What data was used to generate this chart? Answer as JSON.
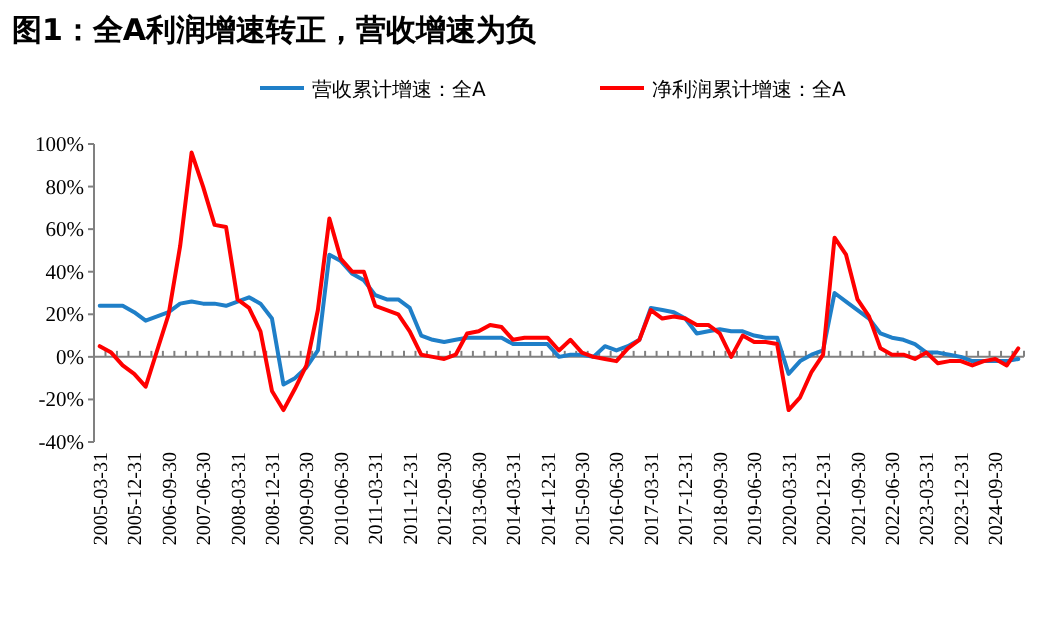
{
  "chart_data": {
    "type": "line",
    "title": "图1：全A利润增速转正，营收增速为负",
    "categories": [
      "2005-03-31",
      null,
      null,
      "2005-12-31",
      null,
      null,
      "2006-09-30",
      null,
      null,
      "2007-06-30",
      null,
      null,
      "2008-03-31",
      null,
      null,
      "2008-12-31",
      null,
      null,
      "2009-09-30",
      null,
      null,
      "2010-06-30",
      null,
      null,
      "2011-03-31",
      null,
      null,
      "2011-12-31",
      null,
      null,
      "2012-09-30",
      null,
      null,
      "2013-06-30",
      null,
      null,
      "2014-03-31",
      null,
      null,
      "2014-12-31",
      null,
      null,
      "2015-09-30",
      null,
      null,
      "2016-06-30",
      null,
      null,
      "2017-03-31",
      null,
      null,
      "2017-12-31",
      null,
      null,
      "2018-09-30",
      null,
      null,
      "2019-06-30",
      null,
      null,
      "2020-03-31",
      null,
      null,
      "2020-12-31",
      null,
      null,
      "2021-09-30",
      null,
      null,
      "2022-06-30",
      null,
      null,
      "2023-03-31",
      null,
      null,
      "2023-12-31",
      null,
      null,
      "2024-09-30",
      null,
      null
    ],
    "series": [
      {
        "name": "营收累计增速：全A",
        "color": "#1f7fc8",
        "values": [
          24,
          24,
          24,
          21,
          17,
          19,
          21,
          25,
          26,
          25,
          25,
          24,
          26,
          28,
          25,
          18,
          -13,
          -10,
          -5,
          3,
          48,
          45,
          39,
          36,
          29,
          27,
          27,
          23,
          10,
          8,
          7,
          8,
          9,
          9,
          9,
          9,
          6,
          6,
          6,
          6,
          0,
          1,
          1,
          0,
          5,
          3,
          5,
          8,
          23,
          22,
          21,
          18,
          11,
          12,
          13,
          12,
          12,
          10,
          9,
          9,
          -8,
          -2,
          1,
          3,
          30,
          26,
          22,
          18,
          11,
          9,
          8,
          6,
          2,
          2,
          1,
          0,
          -2,
          -2,
          -2,
          -2,
          -1
        ]
      },
      {
        "name": "净利润累计增速：全A",
        "color": "#ff0000",
        "values": [
          5,
          2,
          -4,
          -8,
          -14,
          3,
          20,
          52,
          96,
          80,
          62,
          61,
          27,
          23,
          12,
          -16,
          -25,
          -15,
          -4,
          22,
          65,
          46,
          40,
          40,
          24,
          22,
          20,
          12,
          1,
          0,
          -1,
          1,
          11,
          12,
          15,
          14,
          8,
          9,
          9,
          9,
          3,
          8,
          2,
          0,
          -1,
          -2,
          4,
          8,
          22,
          18,
          19,
          18,
          15,
          15,
          11,
          0,
          10,
          7,
          7,
          6,
          -25,
          -19,
          -7,
          1,
          56,
          48,
          27,
          19,
          4,
          1,
          1,
          -1,
          2,
          -3,
          -2,
          -2,
          -4,
          -2,
          -1,
          -4,
          4
        ]
      }
    ],
    "ylim": [
      -40,
      100
    ],
    "yticks": [
      {
        "value": -40,
        "label": "-40%"
      },
      {
        "value": -20,
        "label": "-20%"
      },
      {
        "value": 0,
        "label": "0%"
      },
      {
        "value": 20,
        "label": "20%"
      },
      {
        "value": 40,
        "label": "40%"
      },
      {
        "value": 60,
        "label": "60%"
      },
      {
        "value": 80,
        "label": "80%"
      },
      {
        "value": 100,
        "label": "100%"
      }
    ],
    "legend": "top",
    "marker": "none",
    "line_style": "solid"
  }
}
